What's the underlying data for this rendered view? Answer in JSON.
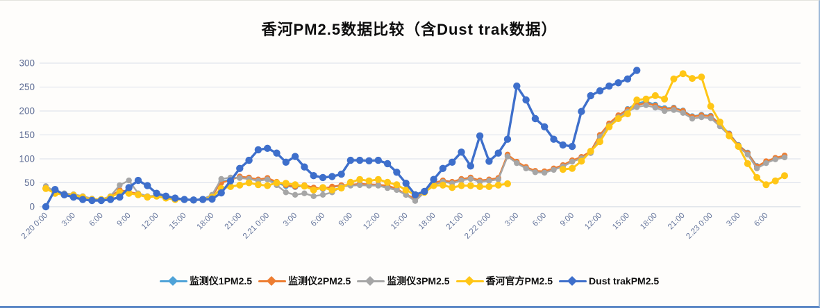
{
  "chart_data": {
    "type": "line",
    "title": "香河PM2.5数据比较（含Dust trak数据）",
    "xlabel": "",
    "ylabel": "",
    "ylim": [
      0,
      300
    ],
    "y_ticks": [
      0,
      50,
      100,
      150,
      200,
      250,
      300
    ],
    "grid": true,
    "legend_position": "bottom",
    "x_unit": "hourly samples, 2.20 0:00 through 2.23 8:00",
    "x_tick_interval_hours": 3,
    "x_tick_labels": [
      "2.20 0:00",
      "3:00",
      "6:00",
      "9:00",
      "12:00",
      "15:00",
      "18:00",
      "21:00",
      "2.21 0:00",
      "3:00",
      "6:00",
      "9:00",
      "12:00",
      "15:00",
      "18:00",
      "21:00",
      "2.22 0:00",
      "3:00",
      "6:00",
      "9:00",
      "12:00",
      "15:00",
      "18:00",
      "21:00",
      "2.23 0:00",
      "3:00",
      "6:00"
    ],
    "series": [
      {
        "name": "监测仪1PM2.5",
        "color": "#4FA3D8",
        "marker": "circle",
        "values": [
          40,
          30,
          26,
          25,
          20,
          16,
          15,
          20,
          33,
          30,
          26,
          20,
          22,
          18,
          15,
          15,
          14,
          15,
          22,
          52,
          57,
          62,
          60,
          56,
          59,
          50,
          43,
          41,
          44,
          39,
          37,
          41,
          44,
          45,
          47,
          46,
          45,
          43,
          37,
          25,
          16,
          32,
          49,
          54,
          51,
          57,
          60,
          54,
          56,
          59,
          107,
          93,
          82,
          74,
          73,
          79,
          86,
          96,
          103,
          114,
          148,
          172,
          190,
          204,
          216,
          220,
          213,
          206,
          207,
          201,
          189,
          192,
          190,
          173,
          153,
          129,
          113,
          85,
          93,
          100,
          104
        ]
      },
      {
        "name": "监测仪2PM2.5",
        "color": "#ED7D31",
        "marker": "circle",
        "values": [
          38,
          31,
          27,
          25,
          21,
          16,
          15,
          21,
          35,
          31,
          27,
          21,
          23,
          18,
          15,
          15,
          14,
          16,
          23,
          50,
          56,
          63,
          61,
          57,
          60,
          52,
          45,
          42,
          45,
          40,
          38,
          42,
          45,
          46,
          48,
          47,
          46,
          44,
          38,
          25,
          18,
          33,
          50,
          55,
          52,
          58,
          61,
          55,
          57,
          60,
          109,
          94,
          83,
          75,
          74,
          80,
          87,
          97,
          104,
          116,
          150,
          174,
          191,
          203,
          212,
          217,
          211,
          204,
          206,
          200,
          188,
          191,
          189,
          172,
          152,
          128,
          112,
          84,
          95,
          102,
          107
        ]
      },
      {
        "name": "监测仪3PM2.5",
        "color": "#A6A6A6",
        "marker": "circle",
        "values": [
          43,
          32,
          28,
          26,
          22,
          17,
          15,
          22,
          45,
          55,
          28,
          22,
          23,
          19,
          15,
          15,
          14,
          16,
          25,
          58,
          61,
          60,
          58,
          54,
          57,
          45,
          30,
          25,
          28,
          22,
          25,
          30,
          42,
          44,
          45,
          44,
          44,
          39,
          35,
          25,
          12,
          30,
          46,
          52,
          49,
          55,
          58,
          52,
          54,
          57,
          105,
          91,
          80,
          72,
          71,
          77,
          84,
          94,
          101,
          112,
          146,
          170,
          187,
          199,
          208,
          212,
          207,
          200,
          202,
          196,
          184,
          187,
          185,
          168,
          149,
          125,
          109,
          80,
          91,
          99,
          103
        ]
      },
      {
        "name": "香河官方PM2.5",
        "color": "#FFC616",
        "marker": "circle",
        "values": [
          38,
          28,
          25,
          24,
          20,
          15,
          15,
          20,
          30,
          28,
          25,
          20,
          22,
          18,
          15,
          15,
          14,
          15,
          20,
          38,
          42,
          45,
          50,
          46,
          44,
          50,
          49,
          46,
          43,
          35,
          40,
          35,
          39,
          51,
          57,
          54,
          57,
          51,
          46,
          35,
          25,
          30,
          44,
          45,
          40,
          44,
          44,
          42,
          42,
          45,
          48,
          null,
          null,
          null,
          null,
          null,
          78,
          80,
          95,
          116,
          136,
          167,
          184,
          194,
          223,
          225,
          232,
          225,
          267,
          278,
          268,
          271,
          210,
          177,
          148,
          126,
          90,
          61,
          46,
          54,
          65
        ]
      },
      {
        "name": "Dust trakPM2.5",
        "color": "#3E6FCB",
        "marker": "circle",
        "values": [
          0,
          36,
          25,
          20,
          15,
          13,
          13,
          15,
          20,
          40,
          55,
          44,
          28,
          22,
          18,
          15,
          14,
          15,
          16,
          29,
          54,
          80,
          97,
          119,
          122,
          112,
          93,
          105,
          83,
          65,
          61,
          63,
          68,
          97,
          97,
          96,
          97,
          90,
          72,
          49,
          25,
          32,
          57,
          80,
          93,
          114,
          85,
          148,
          95,
          112,
          141,
          252,
          223,
          184,
          167,
          141,
          129,
          126,
          199,
          232,
          242,
          252,
          259,
          267,
          285,
          null,
          null,
          null,
          null,
          null,
          null,
          null,
          null,
          null,
          null,
          null,
          null,
          null,
          null,
          null,
          null
        ]
      }
    ]
  }
}
